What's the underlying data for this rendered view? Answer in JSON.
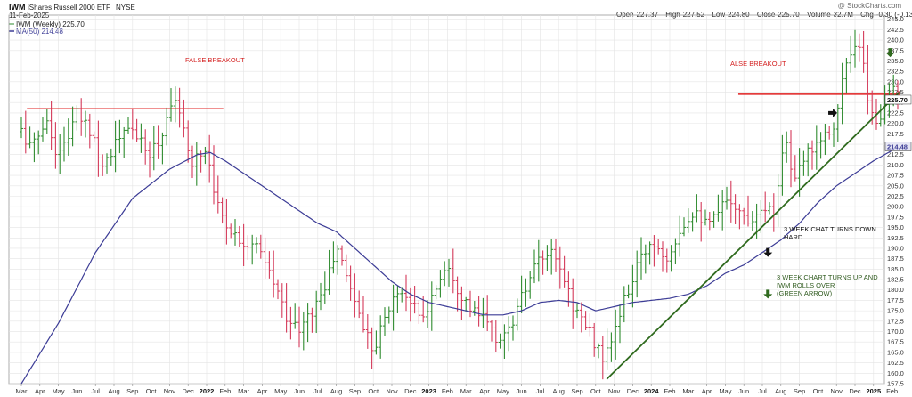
{
  "header": {
    "symbol": "IWM",
    "name": "iShares Russell 2000 ETF",
    "exchange": "NYSE",
    "date": "11-Feb-2025",
    "legend_price": "IWM (Weekly) 225.70",
    "legend_ma": "MA(50) 214.48",
    "watermark": "@ StockCharts.com",
    "open_label": "Open",
    "open_value": "227.37",
    "high_label": "High",
    "high_value": "227.52",
    "low_label": "Low",
    "low_value": "224.80",
    "close_label": "Close",
    "close_value": "225.70",
    "volume_label": "Volume",
    "volume_value": "32.7M",
    "chg_label": "Chg",
    "chg_value": "-0.30 (-0.13%)"
  },
  "colors": {
    "up": "#2e8b2e",
    "down": "#d43a5a",
    "ma": "#3c3c96",
    "resistance": "#e02020",
    "trendline": "#2f6a1e",
    "grid": "#e4e4e4",
    "badge": "#3c3c96"
  },
  "annotations": {
    "false_breakout_1": "FALSE BREAKOUT",
    "false_breakout_2": "ALSE BREAKOUT",
    "note_down_1": "3 WEEK CHAT TURNS DOWN",
    "note_down_2": "HARD",
    "note_up_1": "3 WEEK CHART TURNS UP AND",
    "note_up_2": "IWM ROLLS OVER",
    "note_up_3": "(GREEN ARROW)"
  },
  "chart_data": {
    "type": "ohlc",
    "frequency": "weekly",
    "title": "IWM iShares Russell 2000 ETF NYSE",
    "ylim": [
      157.5,
      246
    ],
    "y_ticks": [
      157.5,
      160,
      162.5,
      165,
      167.5,
      170,
      172.5,
      175,
      177.5,
      180,
      182.5,
      185,
      187.5,
      190,
      192.5,
      195,
      197.5,
      200,
      202.5,
      205,
      207.5,
      210,
      212.5,
      215,
      217.5,
      220,
      222.5,
      225,
      227.5,
      230,
      232.5,
      235,
      237.5,
      240,
      242.5,
      245
    ],
    "x_ticks": [
      {
        "label": "Mar",
        "m": 0
      },
      {
        "label": "Apr",
        "m": 1
      },
      {
        "label": "May",
        "m": 2
      },
      {
        "label": "Jun",
        "m": 3
      },
      {
        "label": "Jul",
        "m": 4
      },
      {
        "label": "Aug",
        "m": 5
      },
      {
        "label": "Sep",
        "m": 6
      },
      {
        "label": "Oct",
        "m": 7
      },
      {
        "label": "Nov",
        "m": 8
      },
      {
        "label": "Dec",
        "m": 9
      },
      {
        "label": "2022",
        "m": 10,
        "bold": true
      },
      {
        "label": "Feb",
        "m": 11
      },
      {
        "label": "Mar",
        "m": 12
      },
      {
        "label": "Apr",
        "m": 13
      },
      {
        "label": "May",
        "m": 14
      },
      {
        "label": "Jun",
        "m": 15
      },
      {
        "label": "Jul",
        "m": 16
      },
      {
        "label": "Aug",
        "m": 17
      },
      {
        "label": "Sep",
        "m": 18
      },
      {
        "label": "Oct",
        "m": 19
      },
      {
        "label": "Nov",
        "m": 20
      },
      {
        "label": "Dec",
        "m": 21
      },
      {
        "label": "2023",
        "m": 22,
        "bold": true
      },
      {
        "label": "Feb",
        "m": 23
      },
      {
        "label": "Mar",
        "m": 24
      },
      {
        "label": "Apr",
        "m": 25
      },
      {
        "label": "May",
        "m": 26
      },
      {
        "label": "Jun",
        "m": 27
      },
      {
        "label": "Jul",
        "m": 28
      },
      {
        "label": "Aug",
        "m": 29
      },
      {
        "label": "Sep",
        "m": 30
      },
      {
        "label": "Oct",
        "m": 31
      },
      {
        "label": "Nov",
        "m": 32
      },
      {
        "label": "Dec",
        "m": 33
      },
      {
        "label": "2024",
        "m": 34,
        "bold": true
      },
      {
        "label": "Feb",
        "m": 35
      },
      {
        "label": "Mar",
        "m": 36
      },
      {
        "label": "Apr",
        "m": 37
      },
      {
        "label": "May",
        "m": 38
      },
      {
        "label": "Jun",
        "m": 39
      },
      {
        "label": "Jul",
        "m": 40
      },
      {
        "label": "Aug",
        "m": 41
      },
      {
        "label": "Sep",
        "m": 42
      },
      {
        "label": "Oct",
        "m": 43
      },
      {
        "label": "Nov",
        "m": 44
      },
      {
        "label": "Dec",
        "m": 45
      },
      {
        "label": "2025",
        "m": 46,
        "bold": true
      },
      {
        "label": "Feb",
        "m": 47
      }
    ],
    "last_price": 225.7,
    "last_ma": 214.48,
    "price_anchors": [
      {
        "m": 0,
        "v": 218
      },
      {
        "m": 0.6,
        "v": 214
      },
      {
        "m": 1.3,
        "v": 221
      },
      {
        "m": 2,
        "v": 212
      },
      {
        "m": 3,
        "v": 222
      },
      {
        "m": 3.8,
        "v": 218
      },
      {
        "m": 4.4,
        "v": 210
      },
      {
        "m": 5.2,
        "v": 216
      },
      {
        "m": 6,
        "v": 219
      },
      {
        "m": 6.8,
        "v": 212
      },
      {
        "m": 7.6,
        "v": 217
      },
      {
        "m": 8.2,
        "v": 228
      },
      {
        "m": 8.6,
        "v": 220
      },
      {
        "m": 9.2,
        "v": 211
      },
      {
        "m": 10,
        "v": 214
      },
      {
        "m": 10.6,
        "v": 200
      },
      {
        "m": 11.2,
        "v": 195
      },
      {
        "m": 11.8,
        "v": 192
      },
      {
        "m": 12.6,
        "v": 191
      },
      {
        "m": 13.5,
        "v": 183
      },
      {
        "m": 14.3,
        "v": 174
      },
      {
        "m": 15,
        "v": 170
      },
      {
        "m": 15.7,
        "v": 175
      },
      {
        "m": 16.4,
        "v": 181
      },
      {
        "m": 17,
        "v": 190
      },
      {
        "m": 17.6,
        "v": 183
      },
      {
        "m": 18.4,
        "v": 172
      },
      {
        "m": 19,
        "v": 166
      },
      {
        "m": 19.6,
        "v": 173
      },
      {
        "m": 20.3,
        "v": 180
      },
      {
        "m": 21,
        "v": 178
      },
      {
        "m": 21.6,
        "v": 172
      },
      {
        "m": 22.3,
        "v": 180
      },
      {
        "m": 23,
        "v": 187
      },
      {
        "m": 23.6,
        "v": 180
      },
      {
        "m": 24.3,
        "v": 175
      },
      {
        "m": 25,
        "v": 173
      },
      {
        "m": 25.6,
        "v": 168
      },
      {
        "m": 26.3,
        "v": 170
      },
      {
        "m": 27,
        "v": 178
      },
      {
        "m": 27.8,
        "v": 186
      },
      {
        "m": 28.5,
        "v": 189
      },
      {
        "m": 29.2,
        "v": 184
      },
      {
        "m": 29.8,
        "v": 176
      },
      {
        "m": 30.4,
        "v": 172
      },
      {
        "m": 31,
        "v": 167
      },
      {
        "m": 31.5,
        "v": 163
      },
      {
        "m": 32,
        "v": 170
      },
      {
        "m": 32.6,
        "v": 178
      },
      {
        "m": 33.2,
        "v": 185
      },
      {
        "m": 34,
        "v": 192
      },
      {
        "m": 34.8,
        "v": 188
      },
      {
        "m": 35.6,
        "v": 195
      },
      {
        "m": 36.4,
        "v": 200
      },
      {
        "m": 37,
        "v": 195
      },
      {
        "m": 37.6,
        "v": 198
      },
      {
        "m": 38.2,
        "v": 203
      },
      {
        "m": 38.8,
        "v": 198
      },
      {
        "m": 39.4,
        "v": 197
      },
      {
        "m": 40,
        "v": 201
      },
      {
        "m": 40.6,
        "v": 198
      },
      {
        "m": 41.2,
        "v": 218
      },
      {
        "m": 41.7,
        "v": 205
      },
      {
        "m": 42.3,
        "v": 212
      },
      {
        "m": 42.9,
        "v": 216
      },
      {
        "m": 43.5,
        "v": 218
      },
      {
        "m": 44,
        "v": 221
      },
      {
        "m": 44.4,
        "v": 233
      },
      {
        "m": 44.9,
        "v": 237
      },
      {
        "m": 45.3,
        "v": 238
      },
      {
        "m": 45.7,
        "v": 226
      },
      {
        "m": 46.1,
        "v": 219
      },
      {
        "m": 46.5,
        "v": 224
      },
      {
        "m": 47,
        "v": 228
      },
      {
        "m": 47.4,
        "v": 225.7
      }
    ],
    "ma_anchors": [
      {
        "m": 0,
        "v": 157.5
      },
      {
        "m": 2,
        "v": 172
      },
      {
        "m": 4,
        "v": 189
      },
      {
        "m": 6,
        "v": 202
      },
      {
        "m": 8,
        "v": 209
      },
      {
        "m": 9.5,
        "v": 212.5
      },
      {
        "m": 10.2,
        "v": 213
      },
      {
        "m": 11,
        "v": 211
      },
      {
        "m": 12,
        "v": 208
      },
      {
        "m": 13,
        "v": 205
      },
      {
        "m": 14,
        "v": 202
      },
      {
        "m": 15,
        "v": 199
      },
      {
        "m": 16,
        "v": 196
      },
      {
        "m": 17,
        "v": 194
      },
      {
        "m": 18,
        "v": 190
      },
      {
        "m": 19,
        "v": 186
      },
      {
        "m": 20,
        "v": 182
      },
      {
        "m": 21,
        "v": 179
      },
      {
        "m": 22,
        "v": 177
      },
      {
        "m": 23,
        "v": 176
      },
      {
        "m": 24,
        "v": 175
      },
      {
        "m": 25,
        "v": 174
      },
      {
        "m": 26,
        "v": 174
      },
      {
        "m": 27,
        "v": 175
      },
      {
        "m": 28,
        "v": 177
      },
      {
        "m": 29,
        "v": 177.5
      },
      {
        "m": 30,
        "v": 177
      },
      {
        "m": 31,
        "v": 175
      },
      {
        "m": 32,
        "v": 176
      },
      {
        "m": 33,
        "v": 177
      },
      {
        "m": 34,
        "v": 177.5
      },
      {
        "m": 35,
        "v": 178
      },
      {
        "m": 36,
        "v": 179
      },
      {
        "m": 37,
        "v": 181
      },
      {
        "m": 38,
        "v": 184
      },
      {
        "m": 39,
        "v": 186
      },
      {
        "m": 40,
        "v": 189
      },
      {
        "m": 41,
        "v": 192
      },
      {
        "m": 42,
        "v": 196
      },
      {
        "m": 43,
        "v": 201
      },
      {
        "m": 44,
        "v": 205
      },
      {
        "m": 45,
        "v": 208
      },
      {
        "m": 46,
        "v": 211
      },
      {
        "m": 47,
        "v": 213.5
      },
      {
        "m": 47.4,
        "v": 214.48
      }
    ],
    "resistance_lines": [
      {
        "m1": 0.3,
        "m2": 10.9,
        "v": 223.5
      },
      {
        "m1": 38.7,
        "m2": 47.4,
        "v": 227
      }
    ],
    "trendline": {
      "m1": 31.6,
      "v1": 158.6,
      "m2": 47.4,
      "v2": 227.5
    },
    "arrows": [
      {
        "type": "right",
        "color": "black",
        "m": 43.8,
        "v": 222.5
      },
      {
        "type": "down",
        "color": "green",
        "m": 46.9,
        "v": 237
      },
      {
        "type": "down",
        "color": "black",
        "m": 40.3,
        "v": 189
      },
      {
        "type": "down",
        "color": "green",
        "m": 40.3,
        "v": 179
      }
    ]
  }
}
